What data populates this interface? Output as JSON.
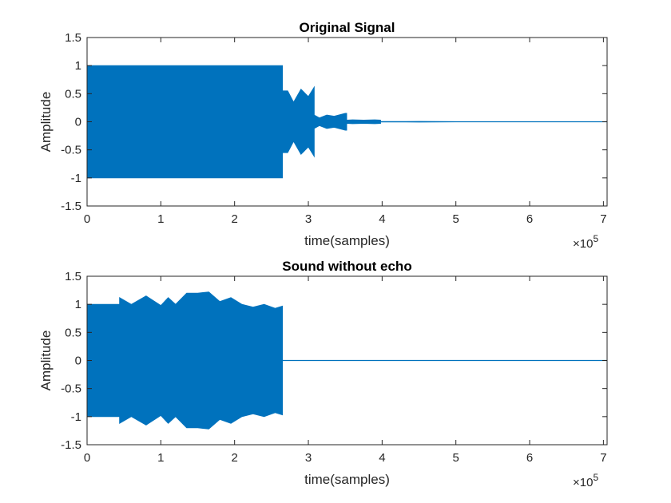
{
  "chart_data": [
    {
      "type": "line",
      "title": "Original Signal",
      "xlabel": "time(samples)",
      "ylabel": "Amplitude",
      "x_exponent_label": "×10",
      "x_exponent": "5",
      "xlim": [
        0,
        7.05
      ],
      "ylim": [
        -1.5,
        1.5
      ],
      "xticks": [
        0,
        1,
        2,
        3,
        4,
        5,
        6,
        7
      ],
      "xtick_labels": [
        "0",
        "1",
        "2",
        "3",
        "4",
        "5",
        "6",
        "7"
      ],
      "yticks": [
        -1.5,
        -1,
        -0.5,
        0,
        0.5,
        1,
        1.5
      ],
      "ytick_labels": [
        "-1.5",
        "-1",
        "-0.5",
        "0",
        "0.5",
        "1",
        "1.5"
      ],
      "grid": false,
      "color": "#0072BD",
      "envelope": {
        "x": [
          0,
          2.65,
          2.65,
          2.72,
          2.8,
          2.9,
          3.0,
          3.08,
          3.08,
          3.15,
          3.25,
          3.35,
          3.5,
          3.52,
          3.52,
          3.6,
          3.75,
          3.9,
          3.98,
          3.98,
          4.5,
          5.0,
          6.0,
          7.05
        ],
        "upper": [
          1,
          1,
          0.55,
          0.55,
          0.35,
          0.58,
          0.45,
          0.62,
          0.12,
          0.07,
          0.12,
          0.1,
          0.15,
          0.15,
          0.03,
          0.035,
          0.03,
          0.035,
          0.03,
          0.005,
          0.006,
          0.004,
          0.003,
          0.003
        ],
        "lower": [
          -1,
          -1,
          -0.55,
          -0.55,
          -0.35,
          -0.58,
          -0.45,
          -0.62,
          -0.12,
          -0.07,
          -0.12,
          -0.1,
          -0.15,
          -0.15,
          -0.03,
          -0.035,
          -0.03,
          -0.035,
          -0.03,
          -0.005,
          -0.006,
          -0.004,
          -0.003,
          -0.003
        ]
      }
    },
    {
      "type": "line",
      "title": "Sound without echo",
      "xlabel": "time(samples)",
      "ylabel": "Amplitude",
      "x_exponent_label": "×10",
      "x_exponent": "5",
      "xlim": [
        0,
        7.05
      ],
      "ylim": [
        -1.5,
        1.5
      ],
      "xticks": [
        0,
        1,
        2,
        3,
        4,
        5,
        6,
        7
      ],
      "xtick_labels": [
        "0",
        "1",
        "2",
        "3",
        "4",
        "5",
        "6",
        "7"
      ],
      "yticks": [
        -1.5,
        -1,
        -0.5,
        0,
        0.5,
        1,
        1.5
      ],
      "ytick_labels": [
        "-1.5",
        "-1",
        "-0.5",
        "0",
        "0.5",
        "1",
        "1.5"
      ],
      "grid": false,
      "color": "#0072BD",
      "envelope": {
        "x": [
          0,
          0.44,
          0.44,
          0.6,
          0.8,
          1.0,
          1.1,
          1.2,
          1.35,
          1.5,
          1.65,
          1.8,
          1.95,
          2.1,
          2.25,
          2.4,
          2.55,
          2.65,
          2.65,
          7.05
        ],
        "upper": [
          1,
          1,
          1.12,
          1.0,
          1.15,
          0.98,
          1.12,
          1.0,
          1.2,
          1.2,
          1.22,
          1.05,
          1.12,
          1.0,
          0.95,
          1.0,
          0.93,
          0.97,
          0.003,
          0.003
        ],
        "lower": [
          -1,
          -1,
          -1.12,
          -1.0,
          -1.15,
          -0.98,
          -1.12,
          -1.0,
          -1.2,
          -1.2,
          -1.22,
          -1.05,
          -1.12,
          -1.0,
          -0.95,
          -1.0,
          -0.93,
          -0.97,
          -0.003,
          -0.003
        ]
      }
    }
  ]
}
